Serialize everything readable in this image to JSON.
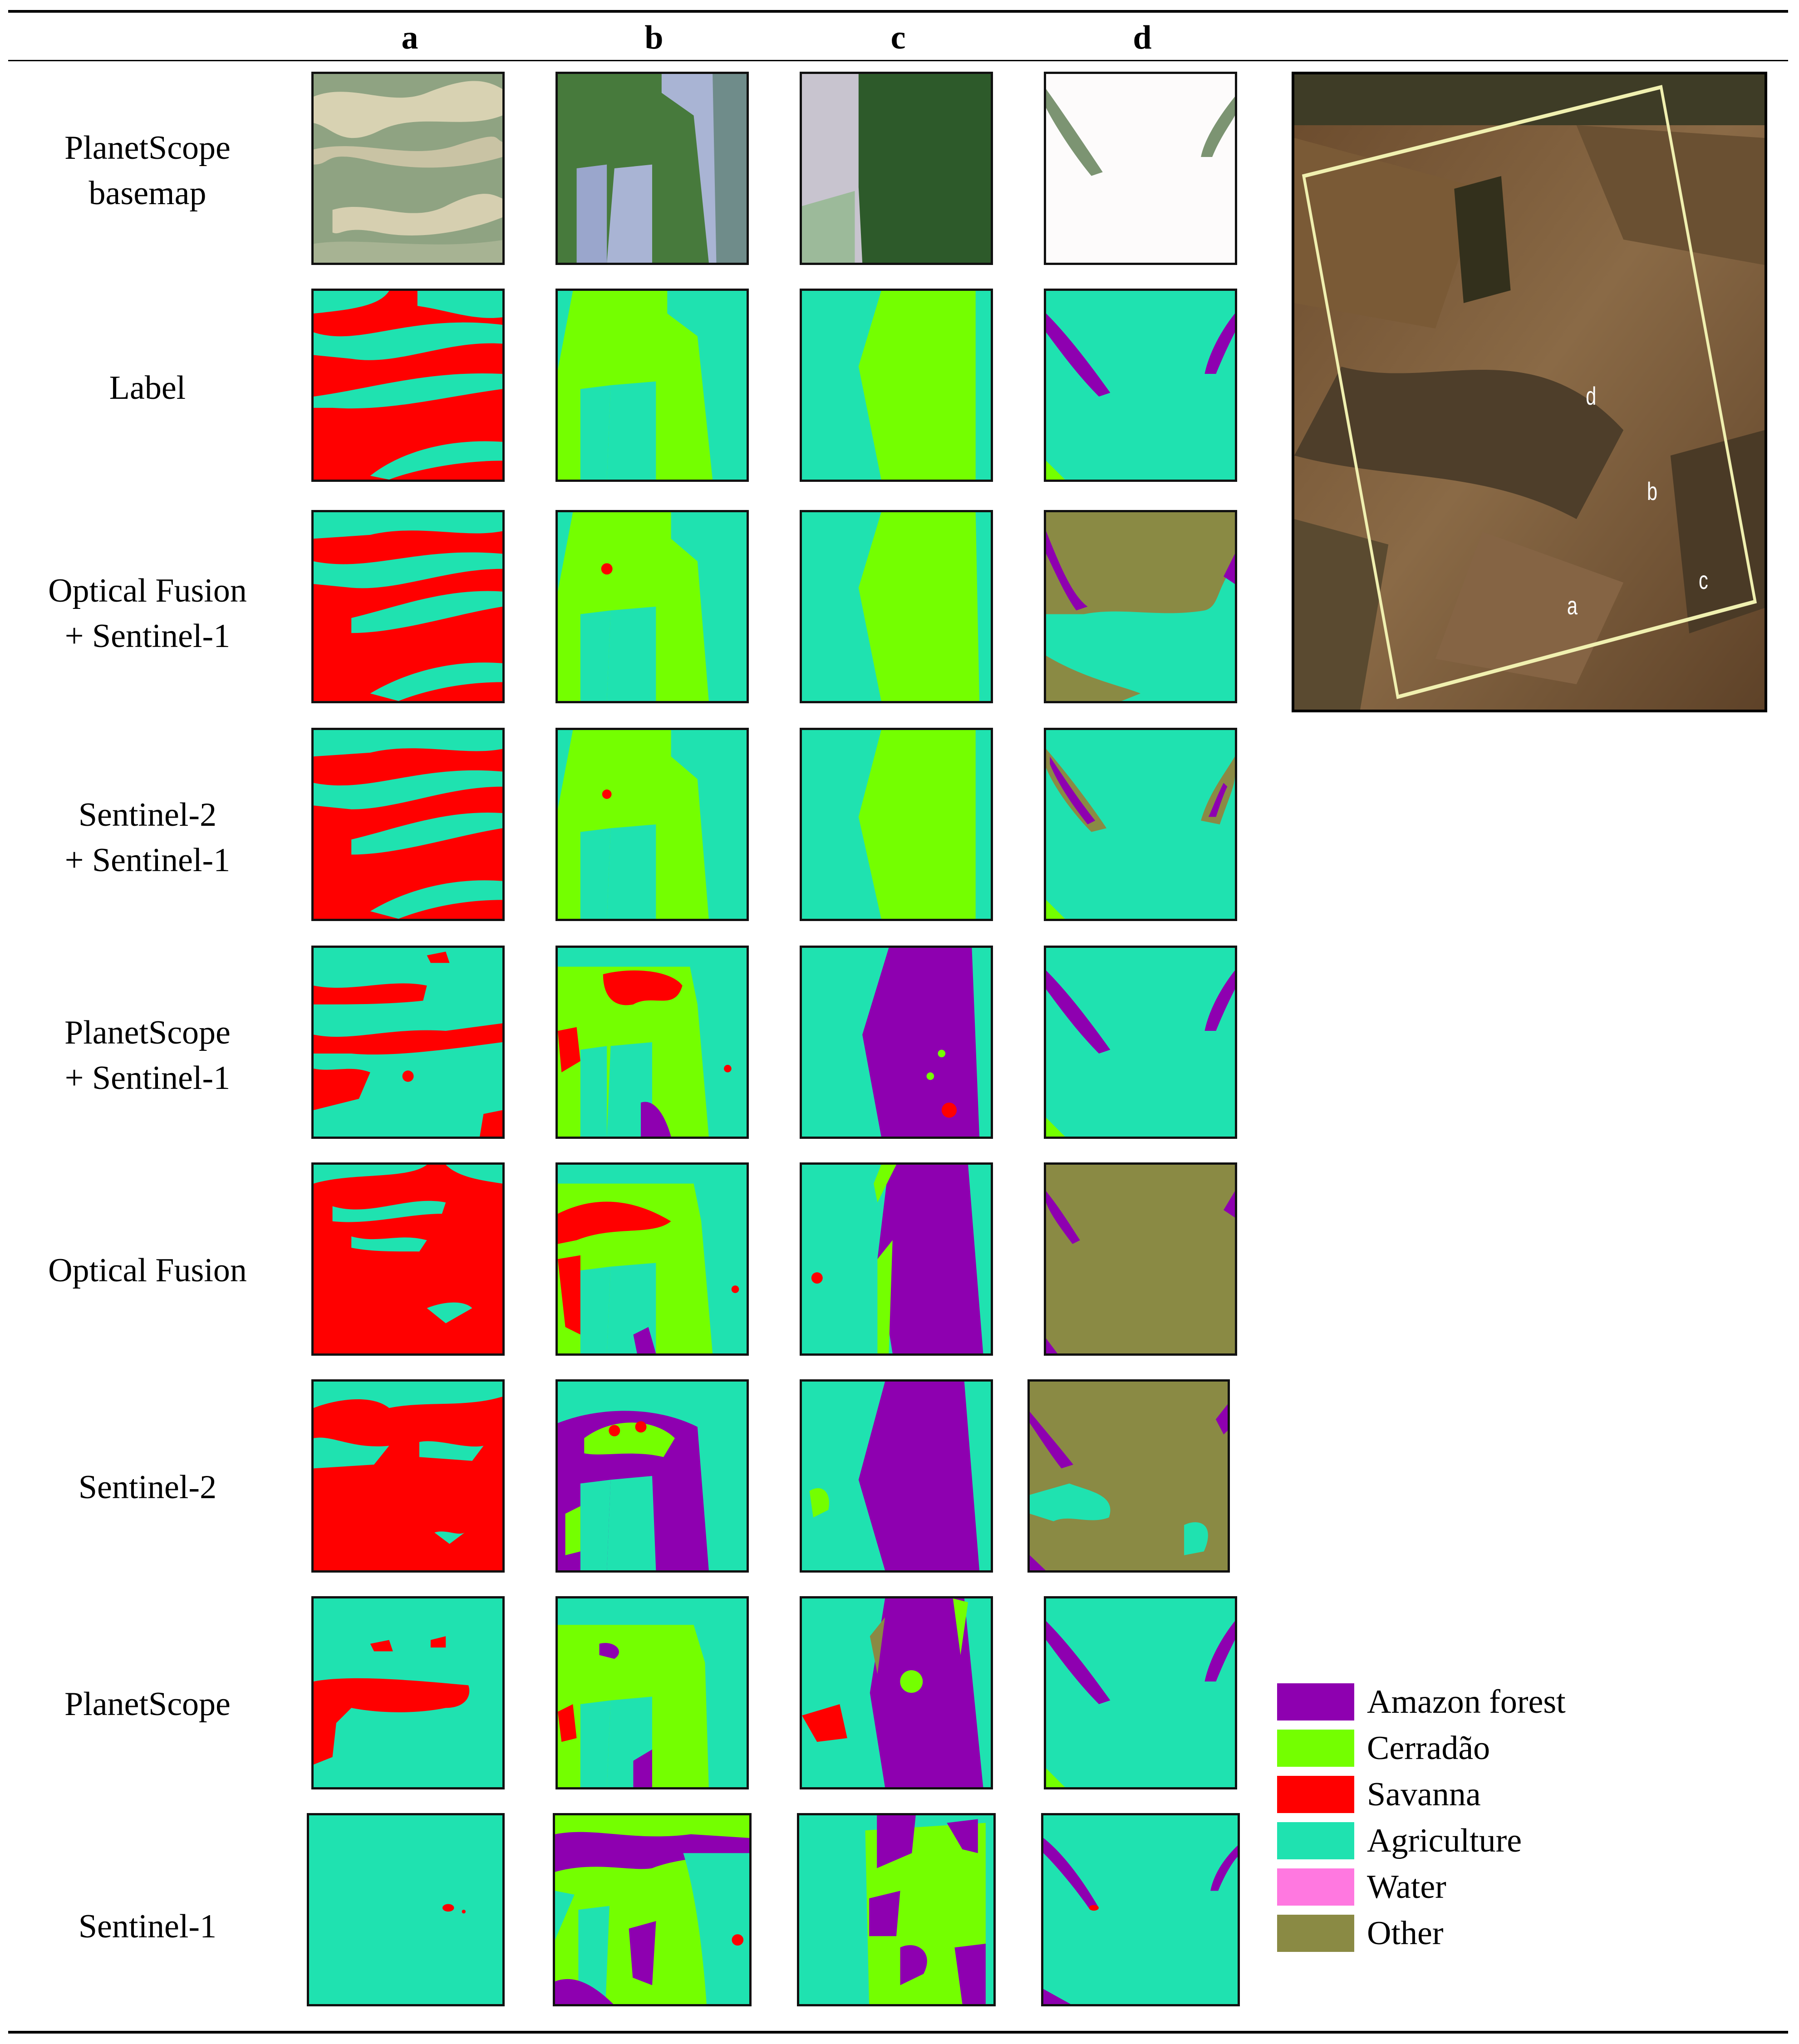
{
  "columns": [
    "a",
    "b",
    "c",
    "d"
  ],
  "rows": [
    {
      "label_lines": [
        "PlanetScope",
        "basemap"
      ]
    },
    {
      "label_lines": [
        "Label"
      ]
    },
    {
      "label_lines": [
        "Optical Fusion",
        "+ Sentinel-1"
      ]
    },
    {
      "label_lines": [
        "Sentinel-2",
        "+ Sentinel-1"
      ]
    },
    {
      "label_lines": [
        "PlanetScope",
        "+ Sentinel-1"
      ]
    },
    {
      "label_lines": [
        "Optical Fusion"
      ]
    },
    {
      "label_lines": [
        "Sentinel-2"
      ]
    },
    {
      "label_lines": [
        "PlanetScope"
      ]
    },
    {
      "label_lines": [
        "Sentinel-1"
      ]
    }
  ],
  "overview_markers": [
    "d",
    "b",
    "c",
    "a"
  ],
  "legend": [
    {
      "label": "Amazon forest",
      "color": "#8e00b0"
    },
    {
      "label": "Cerradão",
      "color": "#74ff00"
    },
    {
      "label": "Savanna",
      "color": "#ff0000"
    },
    {
      "label": "Agriculture",
      "color": "#1fe2b0"
    },
    {
      "label": "Water",
      "color": "#ff78e0"
    },
    {
      "label": "Other",
      "color": "#8a8a44"
    }
  ],
  "colors": {
    "amazon_forest": "#8e00b0",
    "cerradao": "#74ff00",
    "savanna": "#ff0000",
    "agriculture": "#1fe2b0",
    "water": "#ff78e0",
    "other": "#8a8a44"
  }
}
